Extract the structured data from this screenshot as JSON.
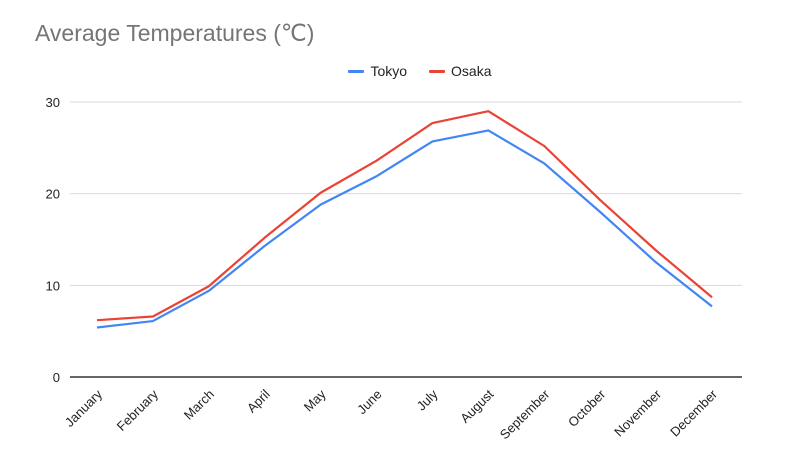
{
  "chart_data": {
    "type": "line",
    "title": "Average Temperatures (℃)",
    "categories": [
      "January",
      "February",
      "March",
      "April",
      "May",
      "June",
      "July",
      "August",
      "September",
      "October",
      "November",
      "December"
    ],
    "series": [
      {
        "name": "Tokyo",
        "color": "#4285f4",
        "values": [
          5.4,
          6.1,
          9.4,
          14.3,
          18.8,
          21.9,
          25.7,
          26.9,
          23.3,
          18.0,
          12.5,
          7.7
        ]
      },
      {
        "name": "Osaka",
        "color": "#ea4335",
        "values": [
          6.2,
          6.6,
          9.9,
          15.2,
          20.1,
          23.6,
          27.7,
          29.0,
          25.2,
          19.3,
          13.8,
          8.7
        ]
      }
    ],
    "ylim": [
      0,
      30
    ],
    "yticks": [
      0,
      10,
      20,
      30
    ],
    "xlabel": "",
    "ylabel": "",
    "grid": true,
    "legend": "top"
  }
}
